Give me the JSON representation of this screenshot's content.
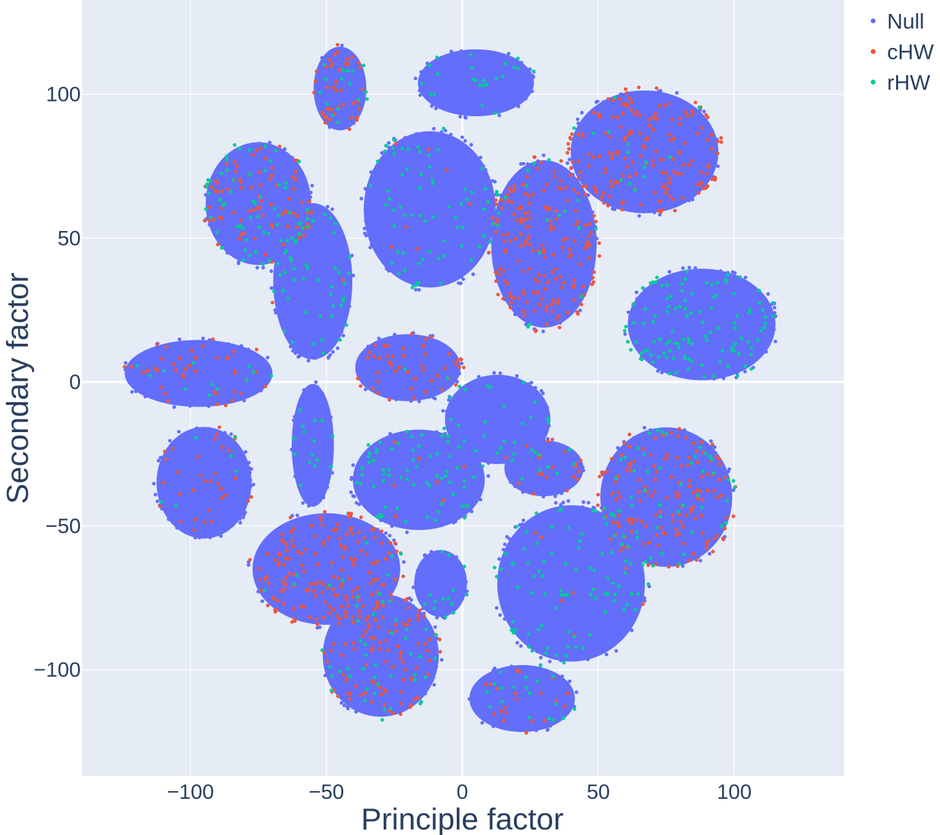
{
  "chart_data": {
    "type": "scatter",
    "xlabel": "Principle factor",
    "ylabel": "Secondary factor",
    "xlim": [
      -140,
      140
    ],
    "ylim": [
      -137,
      133
    ],
    "xticks": [
      -100,
      -50,
      0,
      50,
      100
    ],
    "yticks": [
      -100,
      -50,
      0,
      50,
      100
    ],
    "xtick_labels": [
      "−100",
      "−50",
      "0",
      "50",
      "100"
    ],
    "ytick_labels": [
      "−100",
      "−50",
      "0",
      "50",
      "100"
    ],
    "grid": true,
    "zero_lines": true,
    "plot_background": "#e5ecf6",
    "legend_position": "top-right",
    "series": [
      {
        "name": "Null",
        "color": "#636efa"
      },
      {
        "name": "cHW",
        "color": "#ef553b"
      },
      {
        "name": "rHW",
        "color": "#00cc96"
      }
    ],
    "clusters": [
      {
        "center": [
          -45,
          102
        ],
        "radius": [
          10,
          15
        ],
        "mix": [
          0.25,
          0.45,
          0.3
        ]
      },
      {
        "center": [
          5,
          104
        ],
        "radius": [
          22,
          12
        ],
        "mix": [
          0.8,
          0.0,
          0.2
        ]
      },
      {
        "center": [
          67,
          80
        ],
        "radius": [
          28,
          22
        ],
        "mix": [
          0.45,
          0.5,
          0.05
        ]
      },
      {
        "center": [
          -75,
          62
        ],
        "radius": [
          20,
          22
        ],
        "mix": [
          0.45,
          0.3,
          0.25
        ]
      },
      {
        "center": [
          -12,
          60
        ],
        "radius": [
          25,
          28
        ],
        "mix": [
          0.8,
          0.02,
          0.18
        ]
      },
      {
        "center": [
          -55,
          35
        ],
        "radius": [
          15,
          28
        ],
        "mix": [
          0.78,
          0.02,
          0.2
        ]
      },
      {
        "center": [
          30,
          48
        ],
        "radius": [
          20,
          30
        ],
        "mix": [
          0.45,
          0.5,
          0.05
        ]
      },
      {
        "center": [
          88,
          20
        ],
        "radius": [
          28,
          20
        ],
        "mix": [
          0.65,
          0.0,
          0.35
        ]
      },
      {
        "center": [
          -97,
          3
        ],
        "radius": [
          28,
          12
        ],
        "mix": [
          0.75,
          0.2,
          0.05
        ]
      },
      {
        "center": [
          -20,
          5
        ],
        "radius": [
          20,
          12
        ],
        "mix": [
          0.65,
          0.33,
          0.02
        ]
      },
      {
        "center": [
          13,
          -13
        ],
        "radius": [
          20,
          16
        ],
        "mix": [
          0.85,
          0.0,
          0.15
        ]
      },
      {
        "center": [
          -55,
          -22
        ],
        "radius": [
          8,
          22
        ],
        "mix": [
          0.8,
          0.0,
          0.2
        ]
      },
      {
        "center": [
          -16,
          -34
        ],
        "radius": [
          25,
          18
        ],
        "mix": [
          0.7,
          0.02,
          0.28
        ]
      },
      {
        "center": [
          -95,
          -35
        ],
        "radius": [
          18,
          20
        ],
        "mix": [
          0.78,
          0.17,
          0.05
        ]
      },
      {
        "center": [
          30,
          -30
        ],
        "radius": [
          15,
          10
        ],
        "mix": [
          0.72,
          0.18,
          0.1
        ]
      },
      {
        "center": [
          75,
          -40
        ],
        "radius": [
          25,
          25
        ],
        "mix": [
          0.4,
          0.45,
          0.15
        ]
      },
      {
        "center": [
          -50,
          -65
        ],
        "radius": [
          28,
          20
        ],
        "mix": [
          0.5,
          0.48,
          0.02
        ]
      },
      {
        "center": [
          40,
          -70
        ],
        "radius": [
          28,
          28
        ],
        "mix": [
          0.78,
          0.02,
          0.2
        ]
      },
      {
        "center": [
          -8,
          -70
        ],
        "radius": [
          10,
          12
        ],
        "mix": [
          0.8,
          0.0,
          0.2
        ]
      },
      {
        "center": [
          -30,
          -95
        ],
        "radius": [
          22,
          22
        ],
        "mix": [
          0.5,
          0.35,
          0.15
        ]
      },
      {
        "center": [
          22,
          -110
        ],
        "radius": [
          20,
          12
        ],
        "mix": [
          0.7,
          0.15,
          0.15
        ]
      }
    ]
  }
}
